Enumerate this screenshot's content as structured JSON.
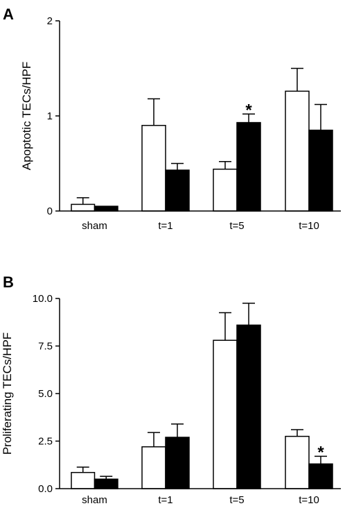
{
  "chart_data": [
    {
      "panel": "A",
      "type": "bar",
      "ylabel": "Apoptotic TECs/HPF",
      "ylim": [
        0,
        2
      ],
      "yticks": [
        "0",
        "1",
        "2"
      ],
      "ytick_values": [
        0,
        1,
        2
      ],
      "categories": [
        "sham",
        "t=1",
        "t=5",
        "t=10"
      ],
      "series": [
        {
          "fill": "#ffffff",
          "values": [
            0.07,
            0.9,
            0.44,
            1.26
          ],
          "errors": [
            0.07,
            0.28,
            0.08,
            0.24
          ],
          "significant": [
            false,
            false,
            false,
            false
          ]
        },
        {
          "fill": "#000000",
          "values": [
            0.05,
            0.43,
            0.93,
            0.85
          ],
          "errors": [
            0.0,
            0.07,
            0.09,
            0.27
          ],
          "significant": [
            false,
            false,
            true,
            false
          ]
        }
      ],
      "sig_marker": "*"
    },
    {
      "panel": "B",
      "type": "bar",
      "ylabel": "Proliferating TECs/HPF",
      "ylim": [
        0,
        10
      ],
      "yticks": [
        "0.0",
        "2.5",
        "5.0",
        "7.5",
        "10.0"
      ],
      "ytick_values": [
        0,
        2.5,
        5,
        7.5,
        10
      ],
      "categories": [
        "sham",
        "t=1",
        "t=5",
        "t=10"
      ],
      "series": [
        {
          "fill": "#ffffff",
          "values": [
            0.85,
            2.2,
            7.8,
            2.75
          ],
          "errors": [
            0.28,
            0.75,
            1.45,
            0.35
          ],
          "significant": [
            false,
            false,
            false,
            false
          ]
        },
        {
          "fill": "#000000",
          "values": [
            0.5,
            2.7,
            8.6,
            1.3
          ],
          "errors": [
            0.15,
            0.7,
            1.15,
            0.4
          ],
          "significant": [
            false,
            false,
            false,
            true
          ]
        }
      ],
      "sig_marker": "*"
    }
  ]
}
